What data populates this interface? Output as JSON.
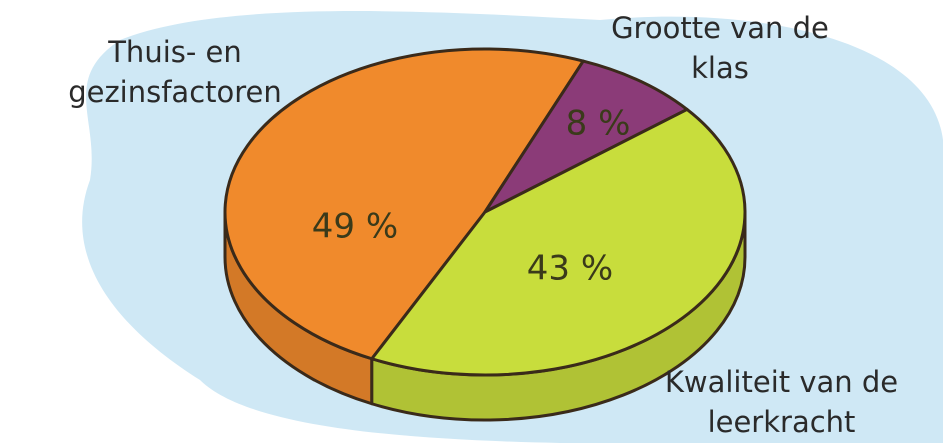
{
  "chart_data": {
    "type": "pie",
    "categories": [
      "Thuis- en gezinsfactoren",
      "Grootte van de klas",
      "Kwaliteit van de leerkracht"
    ],
    "values": [
      49,
      8,
      43
    ],
    "value_labels": [
      "49 %",
      "8 %",
      "43 %"
    ],
    "colors": [
      "#f08a2c",
      "#8b3b78",
      "#c8dd3c"
    ]
  }
}
